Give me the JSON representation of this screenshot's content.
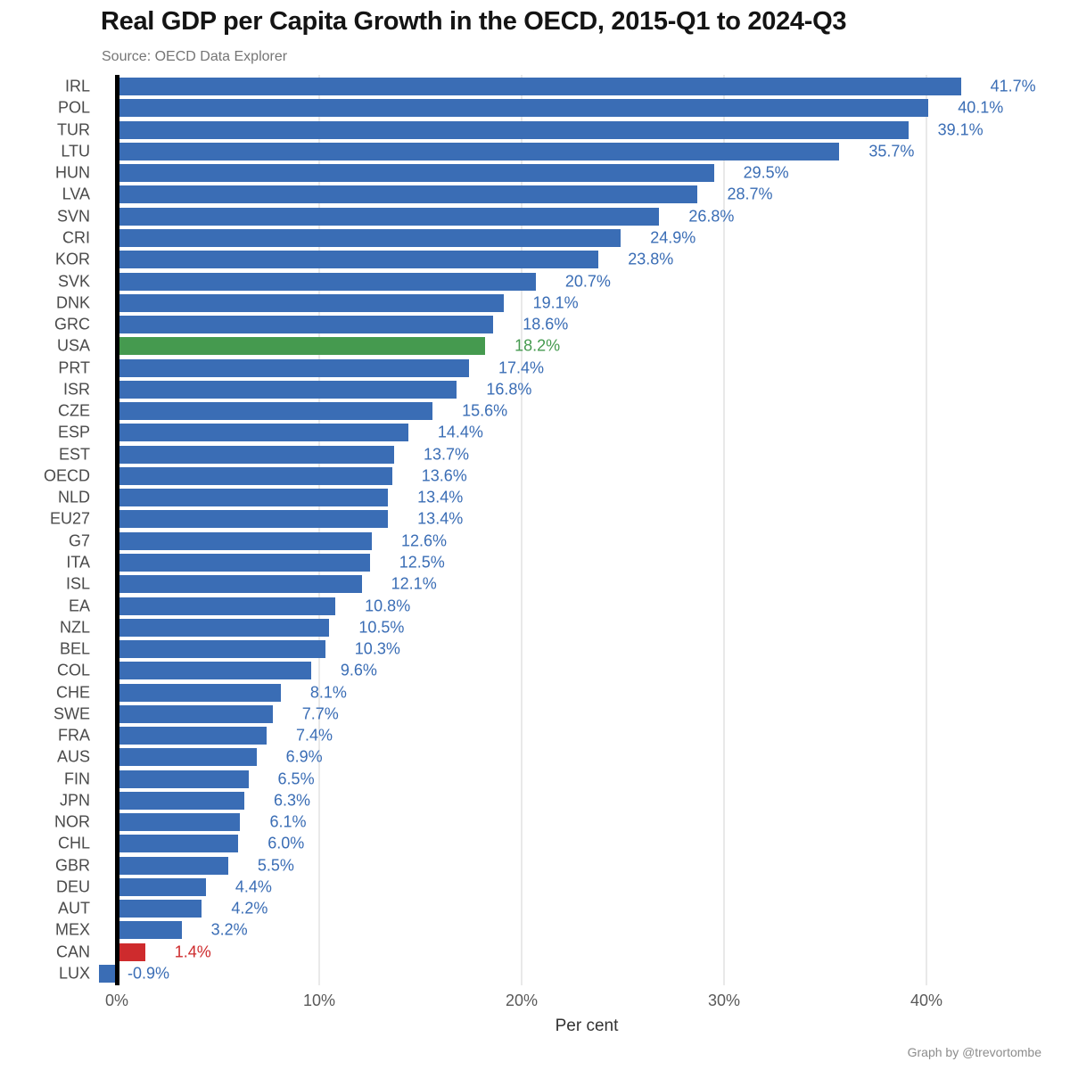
{
  "header": {
    "title": "Real GDP per Capita Growth in the OECD, 2015-Q1 to 2024-Q3",
    "subtitle": "Source: OECD Data Explorer"
  },
  "footer": {
    "attribution": "Graph by @trevortombe"
  },
  "chart_data": {
    "type": "bar",
    "orientation": "horizontal",
    "title": "Real GDP per Capita Growth in the OECD, 2015-Q1 to 2024-Q3",
    "subtitle": "Source: OECD Data Explorer",
    "xlabel": "Per cent",
    "xlim": [
      -2,
      47
    ],
    "grid": "vertical gridlines at x ticks, light gray, behind bars",
    "tick_values": [
      0,
      10,
      20,
      30,
      40
    ],
    "tick_labels": [
      "0%",
      "10%",
      "20%",
      "30%",
      "40%"
    ],
    "colors": {
      "blue": "#3a6db5",
      "green": "#459a4f",
      "red": "#ce2b2d",
      "zero_axis": "#000000",
      "gridline": "#e9e9e9"
    },
    "bars": [
      {
        "code": "IRL",
        "value": 41.7,
        "label": "41.7%",
        "color": "blue"
      },
      {
        "code": "POL",
        "value": 40.1,
        "label": "40.1%",
        "color": "blue"
      },
      {
        "code": "TUR",
        "value": 39.1,
        "label": "39.1%",
        "color": "blue"
      },
      {
        "code": "LTU",
        "value": 35.7,
        "label": "35.7%",
        "color": "blue"
      },
      {
        "code": "HUN",
        "value": 29.5,
        "label": "29.5%",
        "color": "blue"
      },
      {
        "code": "LVA",
        "value": 28.7,
        "label": "28.7%",
        "color": "blue"
      },
      {
        "code": "SVN",
        "value": 26.8,
        "label": "26.8%",
        "color": "blue"
      },
      {
        "code": "CRI",
        "value": 24.9,
        "label": "24.9%",
        "color": "blue"
      },
      {
        "code": "KOR",
        "value": 23.8,
        "label": "23.8%",
        "color": "blue"
      },
      {
        "code": "SVK",
        "value": 20.7,
        "label": "20.7%",
        "color": "blue"
      },
      {
        "code": "DNK",
        "value": 19.1,
        "label": "19.1%",
        "color": "blue"
      },
      {
        "code": "GRC",
        "value": 18.6,
        "label": "18.6%",
        "color": "blue"
      },
      {
        "code": "USA",
        "value": 18.2,
        "label": "18.2%",
        "color": "green"
      },
      {
        "code": "PRT",
        "value": 17.4,
        "label": "17.4%",
        "color": "blue"
      },
      {
        "code": "ISR",
        "value": 16.8,
        "label": "16.8%",
        "color": "blue"
      },
      {
        "code": "CZE",
        "value": 15.6,
        "label": "15.6%",
        "color": "blue"
      },
      {
        "code": "ESP",
        "value": 14.4,
        "label": "14.4%",
        "color": "blue"
      },
      {
        "code": "EST",
        "value": 13.7,
        "label": "13.7%",
        "color": "blue"
      },
      {
        "code": "OECD",
        "value": 13.6,
        "label": "13.6%",
        "color": "blue"
      },
      {
        "code": "NLD",
        "value": 13.4,
        "label": "13.4%",
        "color": "blue"
      },
      {
        "code": "EU27",
        "value": 13.4,
        "label": "13.4%",
        "color": "blue"
      },
      {
        "code": "G7",
        "value": 12.6,
        "label": "12.6%",
        "color": "blue"
      },
      {
        "code": "ITA",
        "value": 12.5,
        "label": "12.5%",
        "color": "blue"
      },
      {
        "code": "ISL",
        "value": 12.1,
        "label": "12.1%",
        "color": "blue"
      },
      {
        "code": "EA",
        "value": 10.8,
        "label": "10.8%",
        "color": "blue"
      },
      {
        "code": "NZL",
        "value": 10.5,
        "label": "10.5%",
        "color": "blue"
      },
      {
        "code": "BEL",
        "value": 10.3,
        "label": "10.3%",
        "color": "blue"
      },
      {
        "code": "COL",
        "value": 9.6,
        "label": "9.6%",
        "color": "blue"
      },
      {
        "code": "CHE",
        "value": 8.1,
        "label": "8.1%",
        "color": "blue"
      },
      {
        "code": "SWE",
        "value": 7.7,
        "label": "7.7%",
        "color": "blue"
      },
      {
        "code": "FRA",
        "value": 7.4,
        "label": "7.4%",
        "color": "blue"
      },
      {
        "code": "AUS",
        "value": 6.9,
        "label": "6.9%",
        "color": "blue"
      },
      {
        "code": "FIN",
        "value": 6.5,
        "label": "6.5%",
        "color": "blue"
      },
      {
        "code": "JPN",
        "value": 6.3,
        "label": "6.3%",
        "color": "blue"
      },
      {
        "code": "NOR",
        "value": 6.1,
        "label": "6.1%",
        "color": "blue"
      },
      {
        "code": "CHL",
        "value": 6.0,
        "label": "6.0%",
        "color": "blue"
      },
      {
        "code": "GBR",
        "value": 5.5,
        "label": "5.5%",
        "color": "blue"
      },
      {
        "code": "DEU",
        "value": 4.4,
        "label": "4.4%",
        "color": "blue"
      },
      {
        "code": "AUT",
        "value": 4.2,
        "label": "4.2%",
        "color": "blue"
      },
      {
        "code": "MEX",
        "value": 3.2,
        "label": "3.2%",
        "color": "blue"
      },
      {
        "code": "CAN",
        "value": 1.4,
        "label": "1.4%",
        "color": "red"
      },
      {
        "code": "LUX",
        "value": -0.9,
        "label": "-0.9%",
        "color": "blue"
      }
    ]
  }
}
